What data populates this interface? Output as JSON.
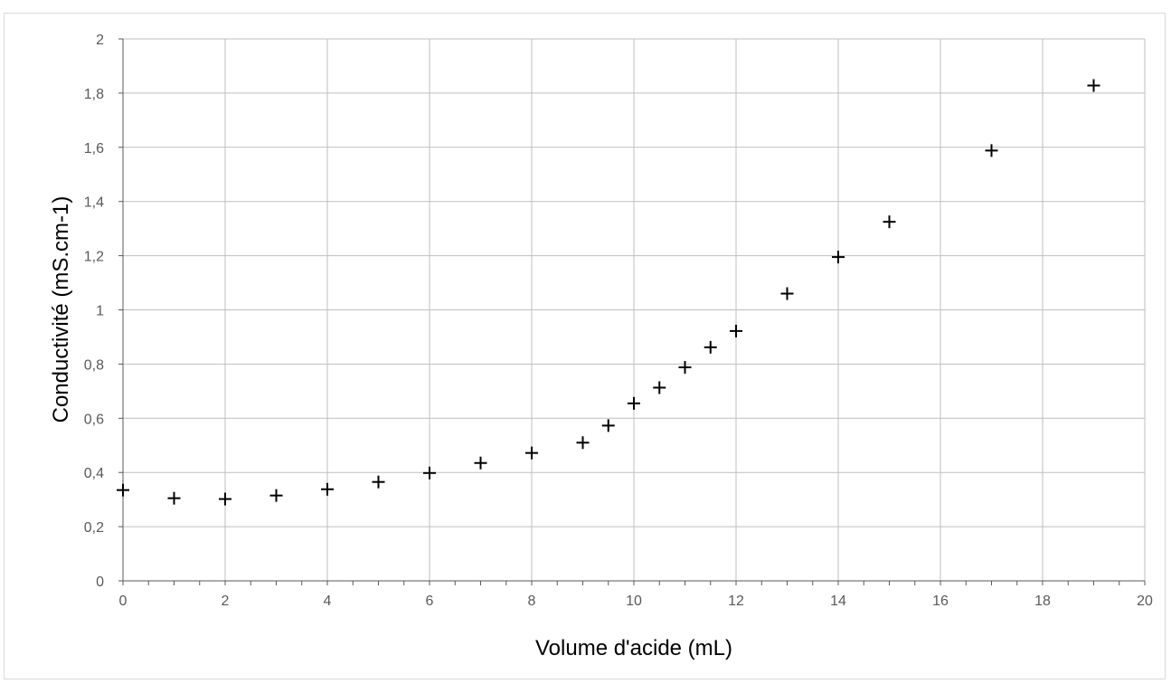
{
  "chart_data": {
    "type": "scatter",
    "title": "",
    "xlabel": "Volume d'acide (mL)",
    "ylabel": "Conductivité (mS.cm-1)",
    "xlim": [
      0,
      20
    ],
    "ylim": [
      0,
      2
    ],
    "x_ticks": [
      "0",
      "2",
      "4",
      "6",
      "8",
      "10",
      "12",
      "14",
      "16",
      "18",
      "20"
    ],
    "y_ticks": [
      "0",
      "0,2",
      "0,4",
      "0,6",
      "0,8",
      "1",
      "1,2",
      "1,4",
      "1,6",
      "1,8",
      "2"
    ],
    "grid": true,
    "legend": "none",
    "marker": "plus",
    "series": [
      {
        "x": [
          0,
          1,
          2,
          3,
          4,
          5,
          6,
          7,
          8,
          9,
          9.5,
          10,
          10.5,
          11,
          11.5,
          12,
          13,
          14,
          15,
          17,
          19
        ],
        "y": [
          0.335,
          0.305,
          0.302,
          0.315,
          0.338,
          0.365,
          0.398,
          0.435,
          0.472,
          0.51,
          0.573,
          0.655,
          0.713,
          0.788,
          0.862,
          0.922,
          1.06,
          1.195,
          1.325,
          1.588,
          1.828
        ],
        "color": "#000000"
      }
    ]
  }
}
